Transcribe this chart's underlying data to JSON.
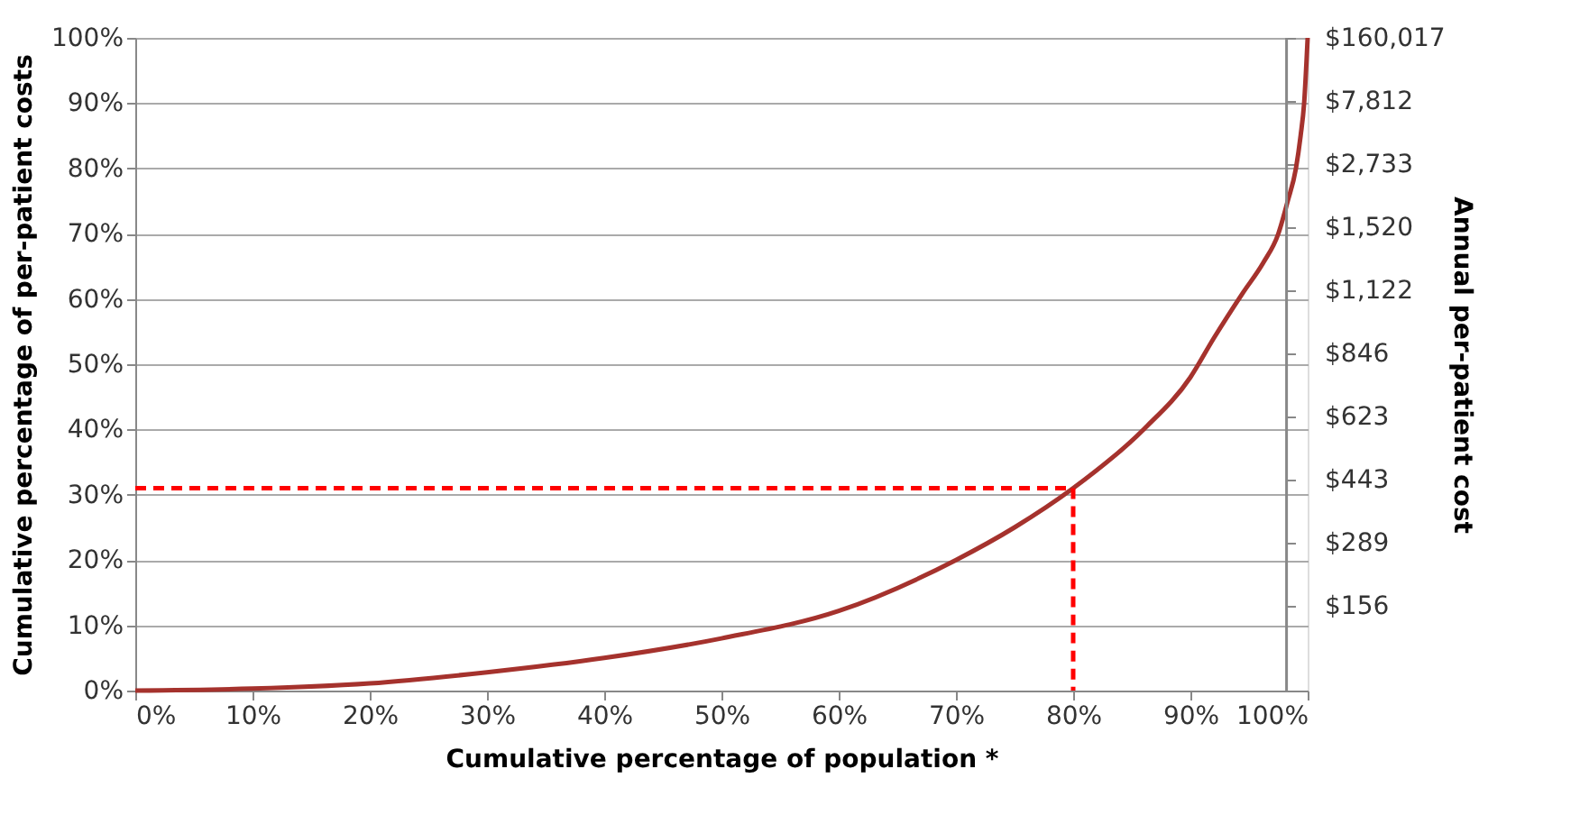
{
  "chart_data": {
    "type": "line",
    "xlabel": "Cumulative percentage of population *",
    "ylabel": "Cumulative percentage of per-patient costs",
    "series": [
      {
        "color": "#a5322d",
        "line_style": "solid",
        "x": [
          0,
          10,
          20,
          30,
          40,
          50,
          60,
          70,
          75,
          80,
          86,
          90,
          92,
          94.5,
          96.2,
          97.5,
          98.3,
          99,
          99.4,
          99.7,
          100
        ],
        "values": [
          0,
          0.3,
          1.1,
          2.8,
          5,
          8,
          12.2,
          20,
          25,
          31,
          40,
          48,
          54,
          61,
          65.5,
          70,
          75,
          80,
          85,
          90,
          100
        ]
      },
      {
        "color": "#ff0000",
        "line_style": "dashed",
        "x": [
          0,
          80,
          80
        ],
        "values": [
          31,
          31,
          0
        ]
      }
    ],
    "xlim": [
      0,
      100
    ],
    "xticks": [
      {
        "value": 0,
        "label": "0%"
      },
      {
        "value": 10,
        "label": "10%"
      },
      {
        "value": 20,
        "label": "20%"
      },
      {
        "value": 30,
        "label": "30%"
      },
      {
        "value": 40,
        "label": "40%"
      },
      {
        "value": 50,
        "label": "50%"
      },
      {
        "value": 60,
        "label": "60%"
      },
      {
        "value": 70,
        "label": "70%"
      },
      {
        "value": 80,
        "label": "80%"
      },
      {
        "value": 90,
        "label": "90%"
      },
      {
        "value": 100,
        "label": "100%"
      }
    ],
    "ylim": [
      0,
      100
    ],
    "yticks": [
      {
        "value": 0,
        "label": "0%"
      },
      {
        "value": 10,
        "label": "10%"
      },
      {
        "value": 20,
        "label": "20%"
      },
      {
        "value": 30,
        "label": "30%"
      },
      {
        "value": 40,
        "label": "40%"
      },
      {
        "value": 50,
        "label": "50%"
      },
      {
        "value": 60,
        "label": "60%"
      },
      {
        "value": 70,
        "label": "70%"
      },
      {
        "value": 80,
        "label": "80%"
      },
      {
        "value": 90,
        "label": "90%"
      },
      {
        "value": 100,
        "label": "100%"
      }
    ],
    "annotations": [
      "Annual per-patient cost",
      "$156",
      "$289",
      "$443",
      "$623",
      "$846",
      "$1,122",
      "$1,520",
      "$2,733",
      "$7,812",
      "$160,017"
    ],
    "ref_lines": [
      {
        "axis": "x",
        "value": 98.2,
        "color": "#888888"
      }
    ],
    "grid": "y",
    "legend": false
  }
}
